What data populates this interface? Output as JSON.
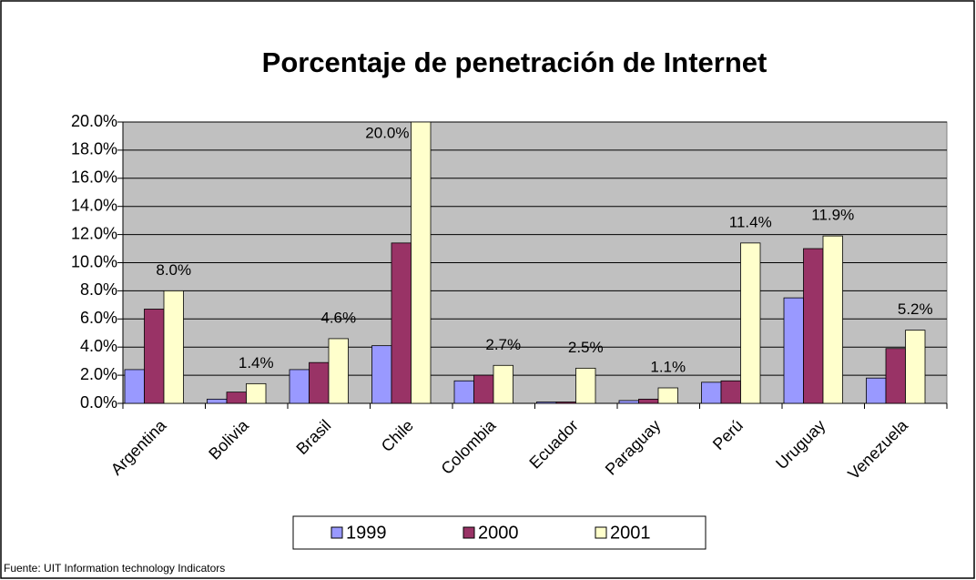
{
  "chart_data": {
    "type": "bar",
    "title": "Porcentaje de penetración de Internet",
    "source": "Fuente: UIT Information technology Indicators",
    "categories": [
      "Argentina",
      "Bolivia",
      "Brasil",
      "Chile",
      "Colombia",
      "Ecuador",
      "Paraguay",
      "Perú",
      "Uruguay",
      "Venezuela"
    ],
    "series": [
      {
        "name": "1999",
        "color": "#9999ff",
        "values": [
          2.4,
          0.3,
          2.4,
          4.1,
          1.6,
          0.1,
          0.2,
          1.5,
          7.5,
          1.8
        ]
      },
      {
        "name": "2000",
        "color": "#993366",
        "values": [
          6.7,
          0.8,
          2.9,
          11.4,
          2.0,
          0.1,
          0.3,
          1.6,
          11.0,
          3.9
        ]
      },
      {
        "name": "2001",
        "color": "#ffffcc",
        "values": [
          8.0,
          1.4,
          4.6,
          20.0,
          2.7,
          2.5,
          1.1,
          11.4,
          11.9,
          5.2
        ],
        "value_labels": [
          "8.0%",
          "1.4%",
          "4.6%",
          "20.0%",
          "2.7%",
          "2.5%",
          "1.1%",
          "11.4%",
          "11.9%",
          "5.2%"
        ]
      }
    ],
    "ylim": [
      0,
      20
    ],
    "yticks": [
      {
        "value": 0,
        "label": "0.0%"
      },
      {
        "value": 2,
        "label": "2.0%"
      },
      {
        "value": 4,
        "label": "4.0%"
      },
      {
        "value": 6,
        "label": "6.0%"
      },
      {
        "value": 8,
        "label": "8.0%"
      },
      {
        "value": 10,
        "label": "10.0%"
      },
      {
        "value": 12,
        "label": "12.0%"
      },
      {
        "value": 14,
        "label": "14.0%"
      },
      {
        "value": 16,
        "label": "16.0%"
      },
      {
        "value": 18,
        "label": "18.0%"
      },
      {
        "value": 20,
        "label": "20.0%"
      }
    ],
    "grid": true,
    "plot_background": "#c0c0c0",
    "legend": "bottom"
  }
}
